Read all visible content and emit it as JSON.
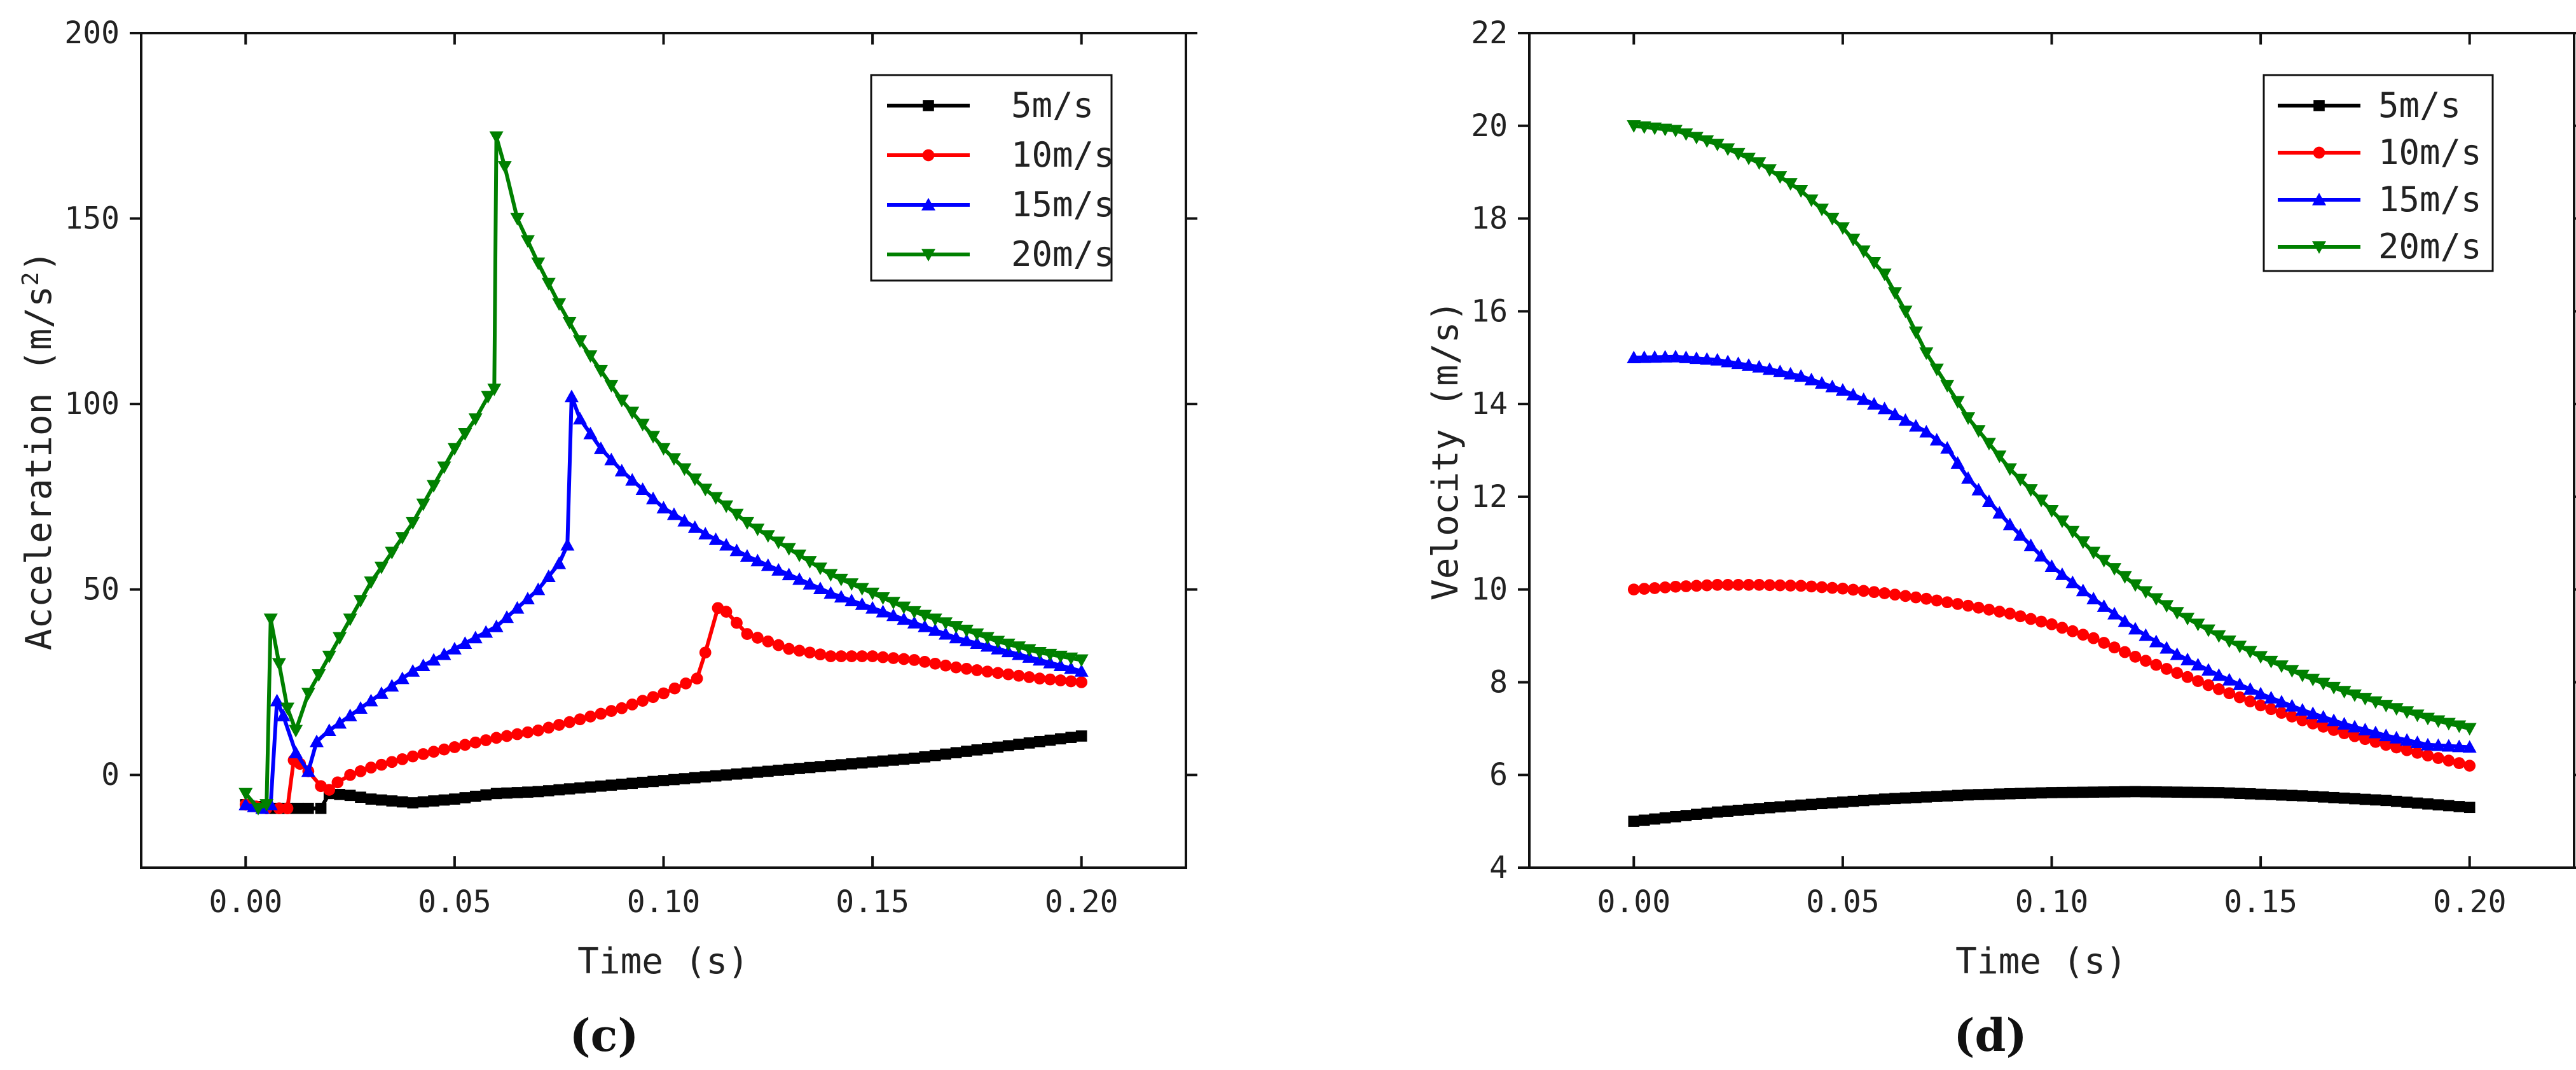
{
  "chart_data": [
    {
      "panel_label": "(c)",
      "type": "line",
      "xlabel": "Time (s)",
      "ylabel_main": "Acceleration (m/s",
      "ylabel_sup": "2",
      "ylabel_close": ")",
      "xlim": [
        -0.025,
        0.225
      ],
      "ylim": [
        -25,
        200
      ],
      "x_ticks": [
        0,
        0.05,
        0.1,
        0.15,
        0.2
      ],
      "x_tick_labels": [
        "0.00",
        "0.05",
        "0.10",
        "0.15",
        "0.20"
      ],
      "y_ticks": [
        0,
        50,
        100,
        150,
        200
      ],
      "y_tick_labels": [
        "0",
        "50",
        "100",
        "150",
        "200"
      ],
      "legend": [
        "5m/s",
        "10m/s",
        "15m/s",
        "20m/s"
      ],
      "series": [
        {
          "name": "5m/s",
          "color": "#000000",
          "marker": "square",
          "points": [
            [
              0,
              -8
            ],
            [
              0.005,
              -9
            ],
            [
              0.01,
              -9
            ],
            [
              0.015,
              -9
            ],
            [
              0.018,
              -9
            ],
            [
              0.02,
              -5
            ],
            [
              0.025,
              -5.5
            ],
            [
              0.03,
              -6.5
            ],
            [
              0.035,
              -7
            ],
            [
              0.04,
              -7.5
            ],
            [
              0.05,
              -6.5
            ],
            [
              0.06,
              -5
            ],
            [
              0.07,
              -4.5
            ],
            [
              0.08,
              -3.5
            ],
            [
              0.09,
              -2.5
            ],
            [
              0.1,
              -1.5
            ],
            [
              0.11,
              -0.5
            ],
            [
              0.12,
              0.5
            ],
            [
              0.13,
              1.5
            ],
            [
              0.14,
              2.5
            ],
            [
              0.15,
              3.5
            ],
            [
              0.16,
              4.5
            ],
            [
              0.17,
              6
            ],
            [
              0.18,
              7.5
            ],
            [
              0.19,
              9
            ],
            [
              0.2,
              10.5
            ]
          ]
        },
        {
          "name": "10m/s",
          "color": "#ff0000",
          "marker": "circle",
          "points": [
            [
              0,
              -8
            ],
            [
              0.005,
              -9
            ],
            [
              0.008,
              -9
            ],
            [
              0.01,
              -9
            ],
            [
              0.0115,
              4
            ],
            [
              0.013,
              3
            ],
            [
              0.015,
              1
            ],
            [
              0.018,
              -3
            ],
            [
              0.02,
              -4
            ],
            [
              0.022,
              -2
            ],
            [
              0.025,
              0
            ],
            [
              0.03,
              2
            ],
            [
              0.04,
              5
            ],
            [
              0.05,
              7.5
            ],
            [
              0.06,
              10
            ],
            [
              0.07,
              12
            ],
            [
              0.08,
              15
            ],
            [
              0.09,
              18
            ],
            [
              0.1,
              22
            ],
            [
              0.108,
              26
            ],
            [
              0.11,
              33
            ],
            [
              0.113,
              45
            ],
            [
              0.115,
              44
            ],
            [
              0.12,
              38
            ],
            [
              0.13,
              34
            ],
            [
              0.14,
              32
            ],
            [
              0.15,
              32
            ],
            [
              0.16,
              31
            ],
            [
              0.17,
              29
            ],
            [
              0.18,
              27.5
            ],
            [
              0.19,
              26
            ],
            [
              0.2,
              25
            ]
          ]
        },
        {
          "name": "15m/s",
          "color": "#0000ff",
          "marker": "triangle-up",
          "points": [
            [
              0,
              -8
            ],
            [
              0.004,
              -9
            ],
            [
              0.006,
              -8
            ],
            [
              0.0075,
              20
            ],
            [
              0.009,
              16
            ],
            [
              0.012,
              6
            ],
            [
              0.015,
              1
            ],
            [
              0.017,
              9
            ],
            [
              0.02,
              12
            ],
            [
              0.025,
              16
            ],
            [
              0.03,
              20
            ],
            [
              0.035,
              24
            ],
            [
              0.04,
              28
            ],
            [
              0.05,
              34
            ],
            [
              0.06,
              40
            ],
            [
              0.065,
              45
            ],
            [
              0.07,
              50
            ],
            [
              0.075,
              57
            ],
            [
              0.077,
              62
            ],
            [
              0.078,
              102
            ],
            [
              0.08,
              96
            ],
            [
              0.085,
              88
            ],
            [
              0.09,
              82
            ],
            [
              0.1,
              72
            ],
            [
              0.11,
              65
            ],
            [
              0.12,
              59
            ],
            [
              0.13,
              54
            ],
            [
              0.14,
              49
            ],
            [
              0.15,
              45
            ],
            [
              0.16,
              41
            ],
            [
              0.17,
              37
            ],
            [
              0.18,
              34
            ],
            [
              0.19,
              31
            ],
            [
              0.2,
              28
            ]
          ]
        },
        {
          "name": "20m/s",
          "color": "#008000",
          "marker": "triangle-down",
          "points": [
            [
              0,
              -5
            ],
            [
              0.003,
              -9
            ],
            [
              0.005,
              -8
            ],
            [
              0.006,
              42
            ],
            [
              0.008,
              30
            ],
            [
              0.01,
              18
            ],
            [
              0.012,
              12
            ],
            [
              0.015,
              22
            ],
            [
              0.02,
              32
            ],
            [
              0.025,
              42
            ],
            [
              0.03,
              52
            ],
            [
              0.035,
              60
            ],
            [
              0.04,
              68
            ],
            [
              0.045,
              78
            ],
            [
              0.05,
              88
            ],
            [
              0.055,
              96
            ],
            [
              0.058,
              102
            ],
            [
              0.0595,
              104
            ],
            [
              0.06,
              172
            ],
            [
              0.062,
              164
            ],
            [
              0.065,
              150
            ],
            [
              0.07,
              138
            ],
            [
              0.075,
              127
            ],
            [
              0.08,
              117
            ],
            [
              0.09,
              101
            ],
            [
              0.1,
              88
            ],
            [
              0.11,
              77
            ],
            [
              0.12,
              68
            ],
            [
              0.13,
              61
            ],
            [
              0.14,
              54
            ],
            [
              0.15,
              49
            ],
            [
              0.16,
              44
            ],
            [
              0.17,
              40
            ],
            [
              0.18,
              36
            ],
            [
              0.19,
              33
            ],
            [
              0.2,
              31
            ]
          ]
        }
      ]
    },
    {
      "panel_label": "(d)",
      "type": "line",
      "xlabel": "Time (s)",
      "ylabel": "Velocity (m/s)",
      "xlim": [
        -0.025,
        0.225
      ],
      "ylim": [
        4,
        22
      ],
      "x_ticks": [
        0,
        0.05,
        0.1,
        0.15,
        0.2
      ],
      "x_tick_labels": [
        "0.00",
        "0.05",
        "0.10",
        "0.15",
        "0.20"
      ],
      "y_ticks": [
        4,
        6,
        8,
        10,
        12,
        14,
        16,
        18,
        20,
        22
      ],
      "y_tick_labels": [
        "4",
        "6",
        "8",
        "10",
        "12",
        "14",
        "16",
        "18",
        "20",
        "22"
      ],
      "legend": [
        "5m/s",
        "10m/s",
        "15m/s",
        "20m/s"
      ],
      "series": [
        {
          "name": "5m/s",
          "color": "#000000",
          "marker": "square",
          "points": [
            [
              0,
              5
            ],
            [
              0.02,
              5.2
            ],
            [
              0.04,
              5.35
            ],
            [
              0.06,
              5.48
            ],
            [
              0.08,
              5.57
            ],
            [
              0.1,
              5.62
            ],
            [
              0.12,
              5.64
            ],
            [
              0.14,
              5.62
            ],
            [
              0.16,
              5.55
            ],
            [
              0.18,
              5.45
            ],
            [
              0.2,
              5.3
            ]
          ]
        },
        {
          "name": "10m/s",
          "color": "#ff0000",
          "marker": "circle",
          "points": [
            [
              0,
              10
            ],
            [
              0.01,
              10.06
            ],
            [
              0.02,
              10.1
            ],
            [
              0.03,
              10.1
            ],
            [
              0.04,
              10.08
            ],
            [
              0.05,
              10.02
            ],
            [
              0.06,
              9.92
            ],
            [
              0.07,
              9.8
            ],
            [
              0.08,
              9.65
            ],
            [
              0.09,
              9.48
            ],
            [
              0.1,
              9.25
            ],
            [
              0.11,
              8.95
            ],
            [
              0.12,
              8.55
            ],
            [
              0.13,
              8.2
            ],
            [
              0.14,
              7.85
            ],
            [
              0.15,
              7.5
            ],
            [
              0.16,
              7.18
            ],
            [
              0.17,
              6.9
            ],
            [
              0.18,
              6.65
            ],
            [
              0.19,
              6.42
            ],
            [
              0.2,
              6.2
            ]
          ]
        },
        {
          "name": "15m/s",
          "color": "#0000ff",
          "marker": "triangle-up",
          "points": [
            [
              0,
              15
            ],
            [
              0.01,
              15.02
            ],
            [
              0.02,
              14.95
            ],
            [
              0.03,
              14.8
            ],
            [
              0.04,
              14.6
            ],
            [
              0.05,
              14.3
            ],
            [
              0.06,
              13.9
            ],
            [
              0.07,
              13.4
            ],
            [
              0.075,
              13.05
            ],
            [
              0.08,
              12.4
            ],
            [
              0.09,
              11.4
            ],
            [
              0.1,
              10.5
            ],
            [
              0.11,
              9.8
            ],
            [
              0.12,
              9.15
            ],
            [
              0.13,
              8.6
            ],
            [
              0.14,
              8.15
            ],
            [
              0.15,
              7.75
            ],
            [
              0.16,
              7.4
            ],
            [
              0.17,
              7.1
            ],
            [
              0.18,
              6.85
            ],
            [
              0.19,
              6.65
            ],
            [
              0.2,
              6.6
            ]
          ]
        },
        {
          "name": "20m/s",
          "color": "#008000",
          "marker": "triangle-down",
          "points": [
            [
              0,
              20
            ],
            [
              0.01,
              19.9
            ],
            [
              0.02,
              19.6
            ],
            [
              0.03,
              19.2
            ],
            [
              0.04,
              18.6
            ],
            [
              0.05,
              17.8
            ],
            [
              0.06,
              16.8
            ],
            [
              0.065,
              16
            ],
            [
              0.07,
              15.1
            ],
            [
              0.08,
              13.7
            ],
            [
              0.09,
              12.6
            ],
            [
              0.1,
              11.7
            ],
            [
              0.11,
              10.8
            ],
            [
              0.12,
              10.1
            ],
            [
              0.13,
              9.5
            ],
            [
              0.14,
              9
            ],
            [
              0.15,
              8.55
            ],
            [
              0.16,
              8.15
            ],
            [
              0.17,
              7.8
            ],
            [
              0.18,
              7.5
            ],
            [
              0.19,
              7.22
            ],
            [
              0.2,
              7
            ]
          ]
        }
      ]
    }
  ]
}
